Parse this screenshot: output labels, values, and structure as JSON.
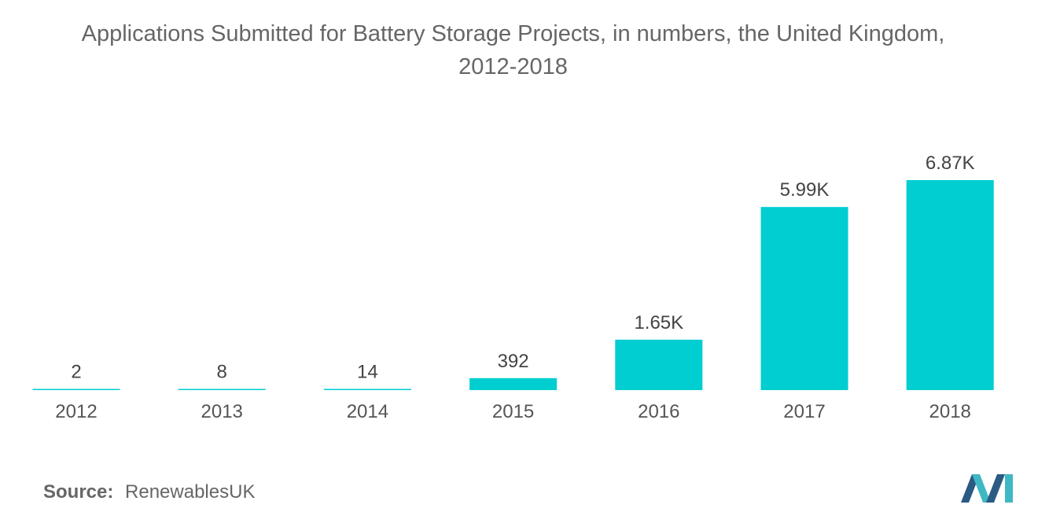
{
  "chart_data": {
    "type": "bar",
    "title_line1": "Applications Submitted for Battery Storage Projects, in numbers, the United Kingdom,",
    "title_line2": "2012-2018",
    "categories": [
      "2012",
      "2013",
      "2014",
      "2015",
      "2016",
      "2017",
      "2018"
    ],
    "values": [
      2,
      8,
      14,
      392,
      1650,
      5990,
      6870
    ],
    "data_labels": [
      "2",
      "8",
      "14",
      "392",
      "1.65K",
      "5.99K",
      "6.87K"
    ],
    "xlabel": "",
    "ylabel": "",
    "ylim": [
      0,
      6870
    ],
    "grid": false,
    "legend": "none",
    "bar_color": "#00CED1"
  },
  "source": {
    "label": "Source:",
    "value": "RenewablesUK"
  },
  "colors": {
    "title": "#666666",
    "text": "#555555",
    "logo_primary": "#2B5A84",
    "logo_accent": "#3FB8C4"
  }
}
